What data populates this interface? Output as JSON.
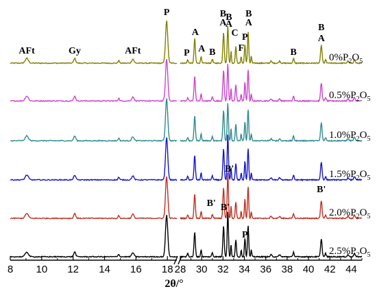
{
  "chart_data": {
    "type": "line",
    "xlabel": "2θ/°",
    "x_segments": [
      [
        8,
        18.6
      ],
      [
        28,
        45
      ]
    ],
    "x_ticks": [
      8,
      10,
      12,
      14,
      16,
      18,
      28,
      30,
      32,
      34,
      36,
      38,
      40,
      42,
      44
    ],
    "grid": false,
    "legend": "none",
    "series": [
      {
        "label": "0%P2O5",
        "lbl_main": "0%P",
        "color": "#808000"
      },
      {
        "label": "0.5%P2O5",
        "lbl_main": "0.5%P",
        "color": "#cc44cc"
      },
      {
        "label": "1.0%P2O5",
        "lbl_main": "1.0%P",
        "color": "#2f8a8f"
      },
      {
        "label": "1.5%P2O5",
        "lbl_main": "1.5%P",
        "color": "#1414cc"
      },
      {
        "label": "2.0%P2O5",
        "lbl_main": "2.0%P",
        "color": "#c03020"
      },
      {
        "label": "2.5%P2O5",
        "lbl_main": "2.5%P",
        "color": "#000000"
      }
    ],
    "peaks": [
      {
        "x": 9.05,
        "h": 7,
        "w": 0.14
      },
      {
        "x": 12.1,
        "h": 7,
        "w": 0.09
      },
      {
        "x": 14.9,
        "h": 4,
        "w": 0.06
      },
      {
        "x": 15.8,
        "h": 6,
        "w": 0.1
      },
      {
        "x": 17.95,
        "h": 62,
        "w": 0.1
      },
      {
        "x": 28.7,
        "h": 5,
        "w": 0.08
      },
      {
        "x": 29.35,
        "h": 36,
        "w": 0.09
      },
      {
        "x": 29.95,
        "h": 10,
        "w": 0.07
      },
      {
        "x": 31.0,
        "h": 6,
        "w": 0.08
      },
      {
        "x": 32.05,
        "h": 45,
        "w": 0.09
      },
      {
        "x": 32.45,
        "h": 55,
        "w": 0.08
      },
      {
        "x": 32.75,
        "h": 18,
        "w": 0.06
      },
      {
        "x": 33.2,
        "h": 24,
        "w": 0.08
      },
      {
        "x": 33.7,
        "h": 10,
        "w": 0.06
      },
      {
        "x": 34.05,
        "h": 28,
        "w": 0.07
      },
      {
        "x": 34.35,
        "h": 46,
        "w": 0.08
      },
      {
        "x": 34.65,
        "h": 10,
        "w": 0.06
      },
      {
        "x": 36.5,
        "h": 3,
        "w": 0.1
      },
      {
        "x": 37.3,
        "h": 3,
        "w": 0.1
      },
      {
        "x": 38.6,
        "h": 7,
        "w": 0.08
      },
      {
        "x": 41.2,
        "h": 26,
        "w": 0.1
      },
      {
        "x": 41.6,
        "h": 5,
        "w": 0.08
      },
      {
        "x": 43.7,
        "h": 3,
        "w": 0.1
      },
      {
        "x": 44.3,
        "h": 5,
        "w": 0.1
      }
    ],
    "annotations": [
      {
        "text": "AFt",
        "x": 9.05,
        "series": 0,
        "dy": 14
      },
      {
        "text": "Gy",
        "x": 12.1,
        "series": 0,
        "dy": 14
      },
      {
        "text": "AFt",
        "x": 15.8,
        "series": 0,
        "dy": 14
      },
      {
        "text": "P",
        "x": 17.95,
        "series": 0,
        "dy": 70
      },
      {
        "text": "P",
        "x": 28.6,
        "series": 0,
        "dy": 11
      },
      {
        "text": "A",
        "x": 29.4,
        "series": 0,
        "dy": 41
      },
      {
        "text": "A",
        "x": 30.0,
        "series": 0,
        "dy": 17
      },
      {
        "text": "B",
        "x": 31.0,
        "series": 0,
        "dy": 12
      },
      {
        "text": "B",
        "x": 32.0,
        "series": 0,
        "dy": 68
      },
      {
        "text": "A",
        "x": 32.0,
        "series": 0,
        "dy": 55
      },
      {
        "text": "B",
        "x": 32.55,
        "series": 0,
        "dy": 63
      },
      {
        "text": "A",
        "x": 32.55,
        "series": 0,
        "dy": 53
      },
      {
        "text": "C",
        "x": 33.1,
        "series": 0,
        "dy": 40
      },
      {
        "text": "F",
        "x": 33.7,
        "series": 0,
        "dy": 18
      },
      {
        "text": "P",
        "x": 34.05,
        "series": 0,
        "dy": 34
      },
      {
        "text": "B",
        "x": 34.4,
        "series": 0,
        "dy": 68
      },
      {
        "text": "A",
        "x": 34.4,
        "series": 0,
        "dy": 55
      },
      {
        "text": "B",
        "x": 38.6,
        "series": 0,
        "dy": 12
      },
      {
        "text": "B",
        "x": 41.2,
        "series": 0,
        "dy": 48
      },
      {
        "text": "A",
        "x": 41.2,
        "series": 0,
        "dy": 32
      },
      {
        "text": "B'",
        "x": 32.6,
        "series": 3,
        "dy": 12
      },
      {
        "text": "B'",
        "x": 32.2,
        "series": 4,
        "dy": 12
      },
      {
        "text": "B'",
        "x": 30.9,
        "series": 4,
        "dy": 18
      },
      {
        "text": "B'",
        "x": 41.2,
        "series": 4,
        "dy": 38
      },
      {
        "text": "P",
        "x": 34.05,
        "series": 5,
        "dy": 28
      }
    ]
  }
}
